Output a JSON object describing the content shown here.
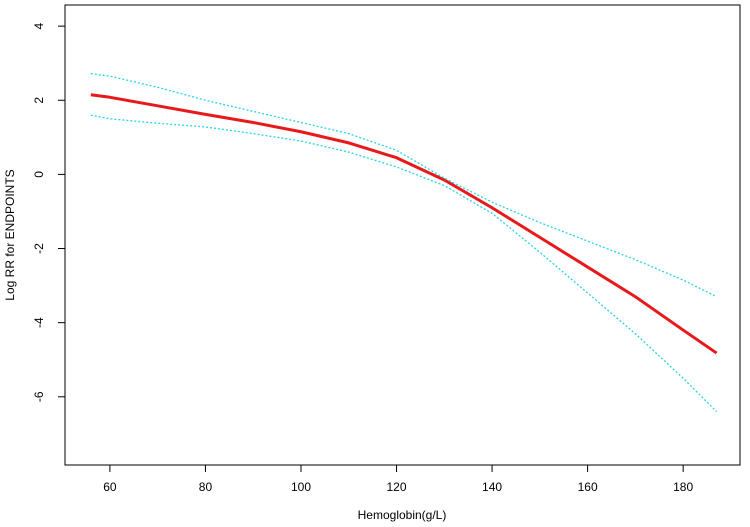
{
  "chart_data": {
    "type": "line",
    "x_label": "Hemoglobin(g/L)",
    "y_label": "Log RR for ENDPOINTS",
    "x": [
      56,
      60,
      70,
      80,
      90,
      100,
      110,
      120,
      130,
      140,
      150,
      160,
      170,
      180,
      187
    ],
    "series": [
      {
        "color": "#e8191a",
        "line_style": "solid",
        "width": 3,
        "values": [
          2.15,
          2.08,
          1.85,
          1.62,
          1.4,
          1.15,
          0.85,
          0.45,
          -0.15,
          -0.9,
          -1.7,
          -2.5,
          -3.3,
          -4.2,
          -4.82
        ]
      },
      {
        "color": "#2ad4e0",
        "line_style": "dotted",
        "width": 1.3,
        "values": [
          2.72,
          2.65,
          2.35,
          2.0,
          1.7,
          1.4,
          1.1,
          0.65,
          -0.1,
          -0.75,
          -1.3,
          -1.8,
          -2.3,
          -2.85,
          -3.3
        ]
      },
      {
        "color": "#2ad4e0",
        "line_style": "dotted",
        "width": 1.3,
        "values": [
          1.6,
          1.5,
          1.38,
          1.28,
          1.1,
          0.9,
          0.6,
          0.2,
          -0.3,
          -1.05,
          -2.1,
          -3.2,
          -4.3,
          -5.5,
          -6.4
        ]
      }
    ],
    "xlim": [
      50.6,
      191.9
    ],
    "ylim": [
      -7.84,
      4.57
    ],
    "xticks": [
      60,
      80,
      100,
      120,
      140,
      160,
      180
    ],
    "yticks": [
      -6,
      -4,
      -2,
      0,
      2,
      4
    ]
  }
}
